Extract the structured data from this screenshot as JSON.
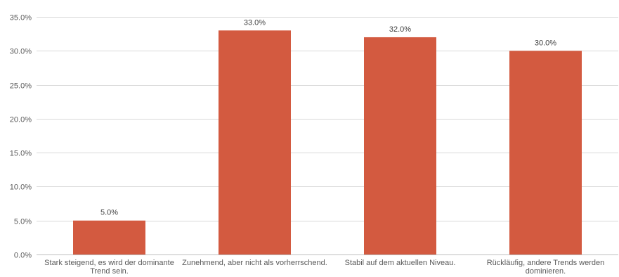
{
  "chart_data": {
    "type": "bar",
    "title": "",
    "xlabel": "",
    "ylabel": "",
    "categories": [
      "Stark steigend, es wird der dominante Trend sein.",
      "Zunehmend, aber nicht als vorherrschend.",
      "Stabil auf dem aktuellen Niveau.",
      "Rückläufig, andere Trends werden dominieren."
    ],
    "category_label_lines": [
      [
        "Stark steigend, es wird der dominante",
        "Trend sein."
      ],
      [
        "Zunehmend, aber nicht als vorherrschend."
      ],
      [
        "Stabil auf dem aktuellen Niveau."
      ],
      [
        "Rückläufig, andere Trends werden",
        "dominieren."
      ]
    ],
    "values": [
      5.0,
      33.0,
      32.0,
      30.0
    ],
    "data_labels": [
      "5.0%",
      "33.0%",
      "32.0%",
      "30.0%"
    ],
    "y_ticks": [
      0,
      5,
      10,
      15,
      20,
      25,
      30,
      35
    ],
    "y_tick_labels": [
      "0.0%",
      "5.0%",
      "10.0%",
      "15.0%",
      "20.0%",
      "25.0%",
      "30.0%",
      "35.0%"
    ],
    "ylim": [
      0,
      35
    ],
    "grid": true,
    "legend": "none",
    "colors": {
      "bar": "#D35A40",
      "grid": "#D9D9D9",
      "axis": "#BFBFBF",
      "text": "#595959"
    }
  }
}
